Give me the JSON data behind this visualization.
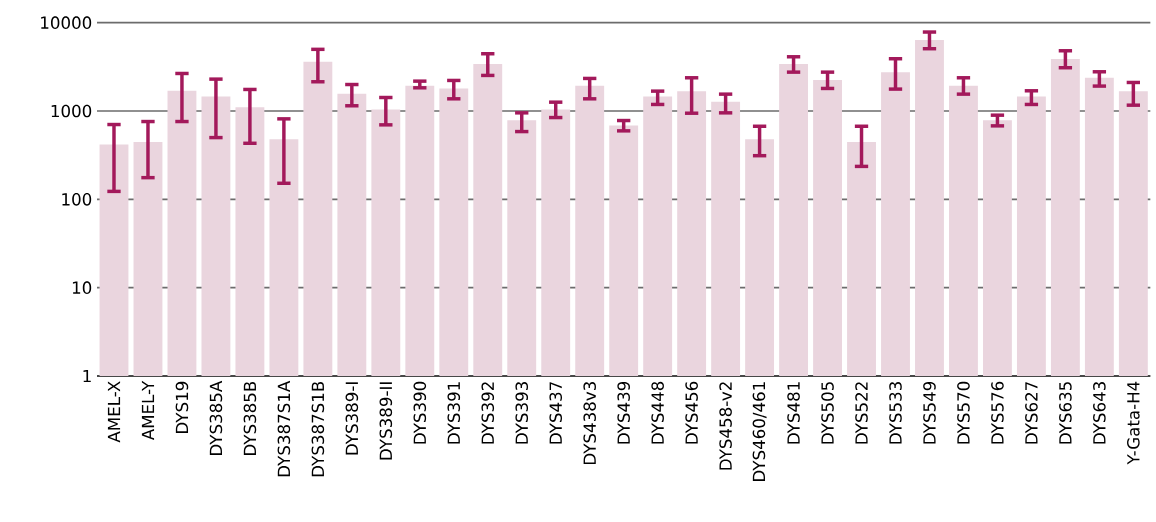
{
  "chart_data": {
    "type": "bar",
    "log": "y",
    "grid": "y",
    "categories": [
      "AMEL-X",
      "AMEL-Y",
      "DYS19",
      "DYS385A",
      "DYS385B",
      "DYS387S1A",
      "DYS387S1B",
      "DYS389-I",
      "DYS389-II",
      "DYS390",
      "DYS391",
      "DYS392",
      "DYS393",
      "DYS437",
      "DYS438v3",
      "DYS439",
      "DYS448",
      "DYS456",
      "DYS458-v2",
      "DYS460/461",
      "DYS481",
      "DYS505",
      "DYS522",
      "DYS533",
      "DYS549",
      "DYS570",
      "DYS576",
      "DYS627",
      "DYS635",
      "DYS643",
      "Y-Gata-H4"
    ],
    "color": "#ead5de",
    "values": [
      417,
      447,
      1694,
      1460,
      1105,
      479,
      3614,
      1567,
      1040,
      1928,
      1800,
      3396,
      787,
      1040,
      1928,
      686,
      1460,
      1679,
      1270,
      479,
      3396,
      2239,
      447,
      2754,
      6355,
      1928,
      787,
      1460,
      3874,
      2378,
      1679
    ],
    "errors": [
      [
        123,
        703
      ],
      [
        176,
        760
      ],
      [
        760,
        2660
      ],
      [
        500,
        2296
      ],
      [
        431,
        1754
      ],
      [
        152,
        815
      ],
      [
        2143,
        4990
      ],
      [
        1146,
        1995
      ],
      [
        697,
        1422
      ],
      [
        1831,
        2178
      ],
      [
        1374,
        2218
      ],
      [
        2528,
        4448
      ],
      [
        585,
        953
      ],
      [
        843,
        1259
      ],
      [
        1374,
        2337
      ],
      [
        596,
        780
      ],
      [
        1186,
        1679
      ],
      [
        944,
        2378
      ],
      [
        953,
        1552
      ],
      [
        312,
        672
      ],
      [
        2754,
        4111
      ],
      [
        1800,
        2754
      ],
      [
        236,
        672
      ],
      [
        1770,
        3907
      ],
      [
        5073,
        7834
      ],
      [
        1552,
        2378
      ],
      [
        679,
        897
      ],
      [
        1186,
        1694
      ],
      [
        3090,
        4808
      ],
      [
        1915,
        2780
      ],
      [
        1164,
        2104
      ]
    ],
    "ylim": [
      1,
      10000
    ],
    "yticks": [
      1,
      10,
      100,
      1000,
      10000
    ]
  }
}
